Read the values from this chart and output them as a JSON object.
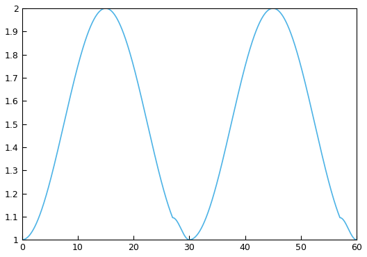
{
  "x_min": 0,
  "x_max": 60,
  "y_min": 1.0,
  "y_max": 2.0,
  "xticks": [
    0,
    10,
    20,
    30,
    40,
    50,
    60
  ],
  "yticks": [
    1.0,
    1.1,
    1.2,
    1.3,
    1.4,
    1.5,
    1.6,
    1.7,
    1.8,
    1.9,
    2.0
  ],
  "line_color": "#4db3e6",
  "line_width": 1.2,
  "base_lr": 1.0,
  "max_lr": 2.0,
  "step_size": 15,
  "figsize": [
    5.28,
    3.7
  ],
  "dpi": 100
}
